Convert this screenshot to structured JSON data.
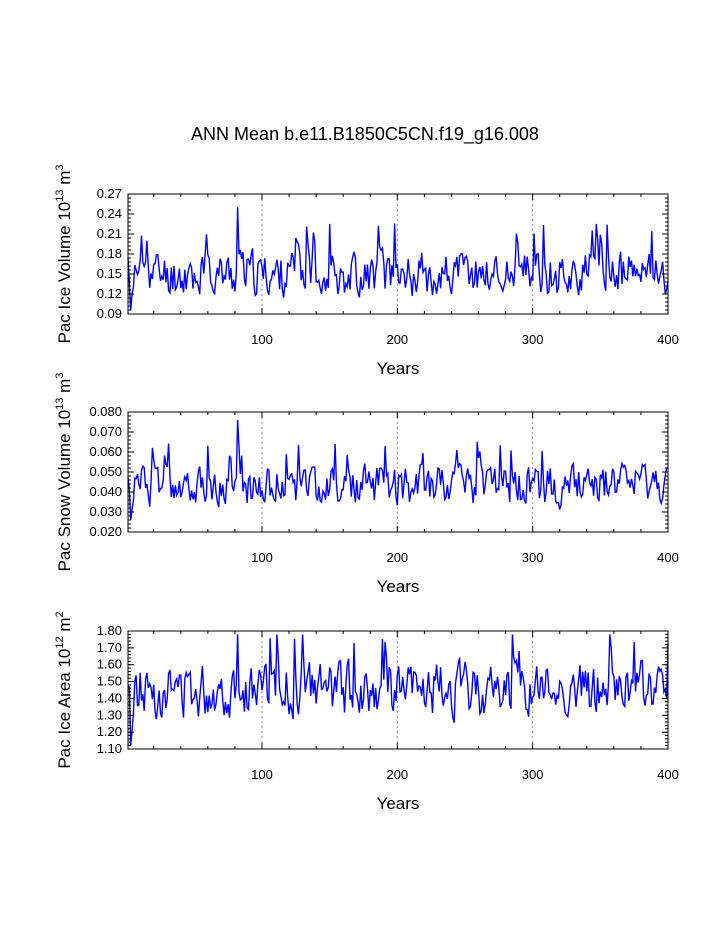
{
  "figure": {
    "title": "ANN Mean b.e11.B1850C5CN.f19_g16.008",
    "line_color": "#0000ff",
    "grid_color": "#888888"
  },
  "chart_data": [
    {
      "type": "line",
      "name": "pac-ice-volume",
      "ylabel_main": "Pac Ice Volume 10",
      "ylabel_exp": "13",
      "ylabel_unit": "m",
      "ylabel_unit_exp": "3",
      "xlabel": "Years",
      "xlim": [
        1,
        400
      ],
      "ylim": [
        0.09,
        0.27
      ],
      "xticks": [
        100,
        200,
        300,
        400
      ],
      "xtick_labels": [
        "100",
        "200",
        "300",
        "400"
      ],
      "yticks": [
        0.09,
        0.12,
        0.15,
        0.18,
        0.21,
        0.24,
        0.27
      ],
      "ytick_labels": [
        "0.09",
        "0.12",
        "0.15",
        "0.18",
        "0.21",
        "0.24",
        "0.27"
      ],
      "vgrid": [
        100,
        200,
        300
      ],
      "mean": 0.15,
      "amp": 0.03,
      "floor": 0.095,
      "peak": 0.25,
      "seed": 11
    },
    {
      "type": "line",
      "name": "pac-snow-volume",
      "ylabel_main": "Pac Snow Volume 10",
      "ylabel_exp": "13",
      "ylabel_unit": "m",
      "ylabel_unit_exp": "3",
      "xlabel": "Years",
      "xlim": [
        1,
        400
      ],
      "ylim": [
        0.02,
        0.08
      ],
      "xticks": [
        100,
        200,
        300,
        400
      ],
      "xtick_labels": [
        "100",
        "200",
        "300",
        "400"
      ],
      "yticks": [
        0.02,
        0.03,
        0.04,
        0.05,
        0.06,
        0.07,
        0.08
      ],
      "ytick_labels": [
        "0.020",
        "0.030",
        "0.040",
        "0.050",
        "0.060",
        "0.070",
        "0.080"
      ],
      "vgrid": [
        100,
        200,
        300
      ],
      "mean": 0.043,
      "amp": 0.009,
      "floor": 0.026,
      "peak": 0.076,
      "seed": 12
    },
    {
      "type": "line",
      "name": "pac-ice-area",
      "ylabel_main": "Pac Ice Area 10",
      "ylabel_exp": "12",
      "ylabel_unit": "m",
      "ylabel_unit_exp": "2",
      "xlabel": "Years",
      "xlim": [
        1,
        400
      ],
      "ylim": [
        1.1,
        1.8
      ],
      "xticks": [
        100,
        200,
        300,
        400
      ],
      "xtick_labels": [
        "100",
        "200",
        "300",
        "400"
      ],
      "yticks": [
        1.1,
        1.2,
        1.3,
        1.4,
        1.5,
        1.6,
        1.7,
        1.8
      ],
      "ytick_labels": [
        "1.10",
        "1.20",
        "1.30",
        "1.40",
        "1.50",
        "1.60",
        "1.70",
        "1.80"
      ],
      "vgrid": [
        100,
        200,
        300
      ],
      "mean": 1.45,
      "amp": 0.14,
      "floor": 1.12,
      "peak": 1.78,
      "seed": 13
    }
  ]
}
